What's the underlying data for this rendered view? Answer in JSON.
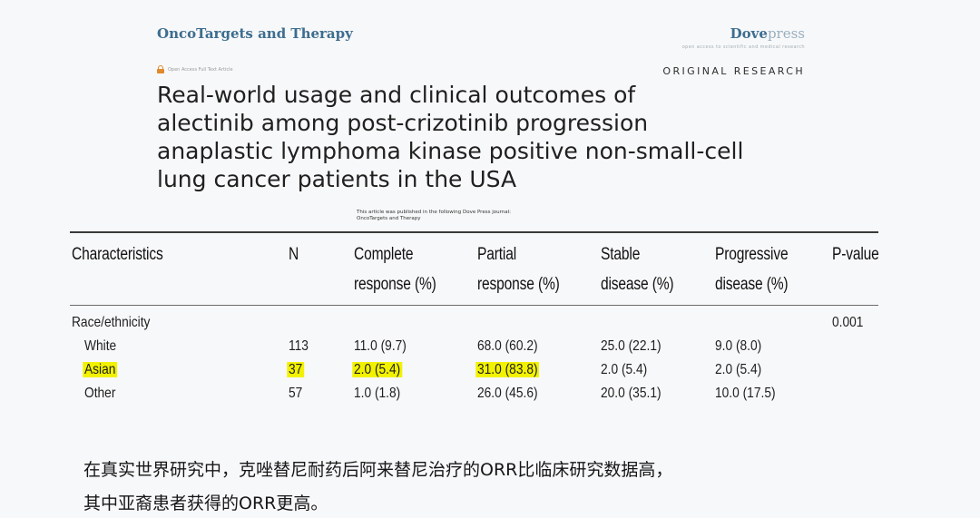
{
  "header": {
    "journal": "OncoTargets and Therapy",
    "publisher_bold": "Dove",
    "publisher_rest": "press",
    "publisher_tagline": "open access to scientific and medical research",
    "open_access": "Open Access Full Text Article",
    "article_type": "ORIGINAL RESEARCH"
  },
  "title_lines": [
    "Real-world usage and clinical outcomes of",
    "alectinib among post-crizotinib progression",
    "anaplastic lymphoma kinase positive non-small-cell",
    "lung cancer patients in the USA"
  ],
  "publication_note": [
    "This article was published in the following Dove Press journal:",
    "OncoTargets and Therapy"
  ],
  "table": {
    "headers": [
      {
        "line1": "Characteristics",
        "line2": ""
      },
      {
        "line1": "N",
        "line2": ""
      },
      {
        "line1": "Complete",
        "line2": "response (%)"
      },
      {
        "line1": "Partial",
        "line2": "response (%)"
      },
      {
        "line1": "Stable",
        "line2": "disease (%)"
      },
      {
        "line1": "Progressive",
        "line2": "disease (%)"
      },
      {
        "line1": "P-value",
        "line2": ""
      }
    ],
    "group_label": "Race/ethnicity",
    "group_p_value": "0.001",
    "rows": [
      {
        "label": "White",
        "n": "113",
        "complete": "11.0 (9.7)",
        "partial": "68.0 (60.2)",
        "stable": "25.0 (22.1)",
        "progressive": "9.0 (8.0)",
        "highlighted": false
      },
      {
        "label": "Asian",
        "n": "37",
        "complete": "2.0 (5.4)",
        "partial": "31.0 (83.8)",
        "stable": "2.0 (5.4)",
        "progressive": "2.0 (5.4)",
        "highlighted": true
      },
      {
        "label": "Other",
        "n": "57",
        "complete": "1.0 (1.8)",
        "partial": "26.0 (45.6)",
        "stable": "20.0 (35.1)",
        "progressive": "10.0 (17.5)",
        "highlighted": false
      }
    ],
    "highlight_color": "#f2f200"
  },
  "caption_lines": [
    "在真实世界研究中，克唑替尼耐药后阿来替尼治疗的ORR比临床研究数据高，",
    "其中亚裔患者获得的ORR更高。"
  ],
  "colors": {
    "journal": "#3d6d8f",
    "background": "#f7f8f9",
    "open_access_icon": "#e08a2d"
  }
}
